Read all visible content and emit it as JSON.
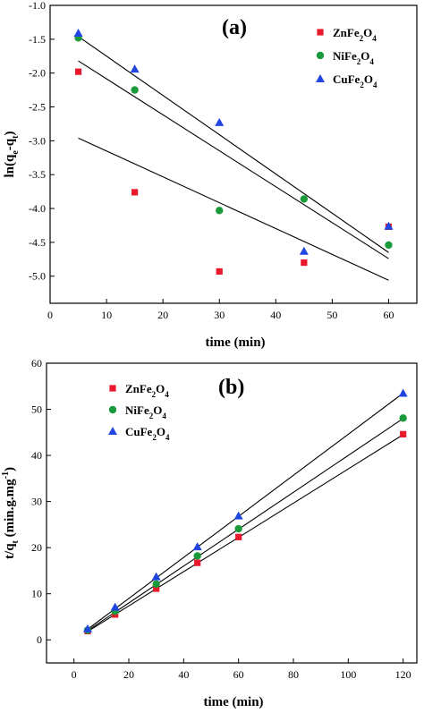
{
  "chart_data": [
    {
      "type": "scatter",
      "panel_label": "(a)",
      "xlabel": "time (min)",
      "ylabel": {
        "main": "ln(q",
        "sub1": "e",
        "mid": "-q",
        "sub2": "t",
        "end": ")"
      },
      "xlim": [
        0,
        65
      ],
      "ylim": [
        -5.4,
        -1.0
      ],
      "xticks": [
        0,
        10,
        20,
        30,
        40,
        50,
        60
      ],
      "yticks": [
        -1.0,
        -1.5,
        -2.0,
        -2.5,
        -3.0,
        -3.5,
        -4.0,
        -4.5,
        -5.0
      ],
      "legend_position": "top-right",
      "series": [
        {
          "name": {
            "a": "ZnFe",
            "s1": "2",
            "b": "O",
            "s2": "4"
          },
          "marker": "square",
          "color": "#e8192c",
          "points": [
            [
              5,
              -1.98
            ],
            [
              15,
              -3.76
            ],
            [
              30,
              -4.93
            ],
            [
              45,
              -4.8
            ],
            [
              60,
              -4.27
            ]
          ],
          "fit": [
            [
              5,
              -2.96
            ],
            [
              60,
              -5.06
            ]
          ]
        },
        {
          "name": {
            "a": "NiFe",
            "s1": "2",
            "b": "O",
            "s2": "4"
          },
          "marker": "circle",
          "color": "#1a9a3a",
          "points": [
            [
              5,
              -1.48
            ],
            [
              15,
              -2.25
            ],
            [
              30,
              -4.03
            ],
            [
              45,
              -3.86
            ],
            [
              60,
              -4.54
            ]
          ],
          "fit": [
            [
              5,
              -1.82
            ],
            [
              60,
              -4.74
            ]
          ]
        },
        {
          "name": {
            "a": "CuFe",
            "s1": "2",
            "b": "O",
            "s2": "4"
          },
          "marker": "triangle",
          "color": "#2146e0",
          "points": [
            [
              5,
              -1.41
            ],
            [
              15,
              -1.94
            ],
            [
              30,
              -2.73
            ],
            [
              45,
              -4.63
            ],
            [
              60,
              -4.26
            ]
          ],
          "fit": [
            [
              5,
              -1.46
            ],
            [
              60,
              -4.65
            ]
          ]
        }
      ]
    },
    {
      "type": "scatter",
      "panel_label": "(b)",
      "xlabel": "time (min)",
      "ylabel": {
        "main": "t/q",
        "sub1": "t",
        "mid": " (min.g.mg",
        "sup": "-1",
        "end": ")"
      },
      "xlim": [
        -10,
        125
      ],
      "ylim": [
        -5,
        60
      ],
      "xticks": [
        0,
        20,
        40,
        60,
        80,
        100,
        120
      ],
      "yticks": [
        0,
        10,
        20,
        30,
        40,
        50,
        60
      ],
      "legend_position": "top-left",
      "series": [
        {
          "name": {
            "a": "ZnFe",
            "s1": "2",
            "b": "O",
            "s2": "4"
          },
          "marker": "square",
          "color": "#e8192c",
          "points": [
            [
              5,
              1.9
            ],
            [
              15,
              5.5
            ],
            [
              30,
              11.1
            ],
            [
              45,
              16.7
            ],
            [
              60,
              22.3
            ],
            [
              120,
              44.6
            ]
          ],
          "fit": [
            [
              5,
              1.8
            ],
            [
              120,
              44.5
            ]
          ]
        },
        {
          "name": {
            "a": "NiFe",
            "s1": "2",
            "b": "O",
            "s2": "4"
          },
          "marker": "circle",
          "color": "#1a9a3a",
          "points": [
            [
              5,
              2.1
            ],
            [
              15,
              6.2
            ],
            [
              30,
              12.1
            ],
            [
              45,
              18.2
            ],
            [
              60,
              24.1
            ],
            [
              120,
              48.1
            ]
          ],
          "fit": [
            [
              5,
              2.0
            ],
            [
              120,
              48.0
            ]
          ]
        },
        {
          "name": {
            "a": "CuFe",
            "s1": "2",
            "b": "O",
            "s2": "4"
          },
          "marker": "triangle",
          "color": "#2146e0",
          "points": [
            [
              5,
              2.4
            ],
            [
              15,
              7.1
            ],
            [
              30,
              13.7
            ],
            [
              45,
              20.2
            ],
            [
              60,
              26.9
            ],
            [
              120,
              53.5
            ]
          ],
          "fit": [
            [
              5,
              2.3
            ],
            [
              120,
              53.5
            ]
          ]
        }
      ]
    }
  ]
}
